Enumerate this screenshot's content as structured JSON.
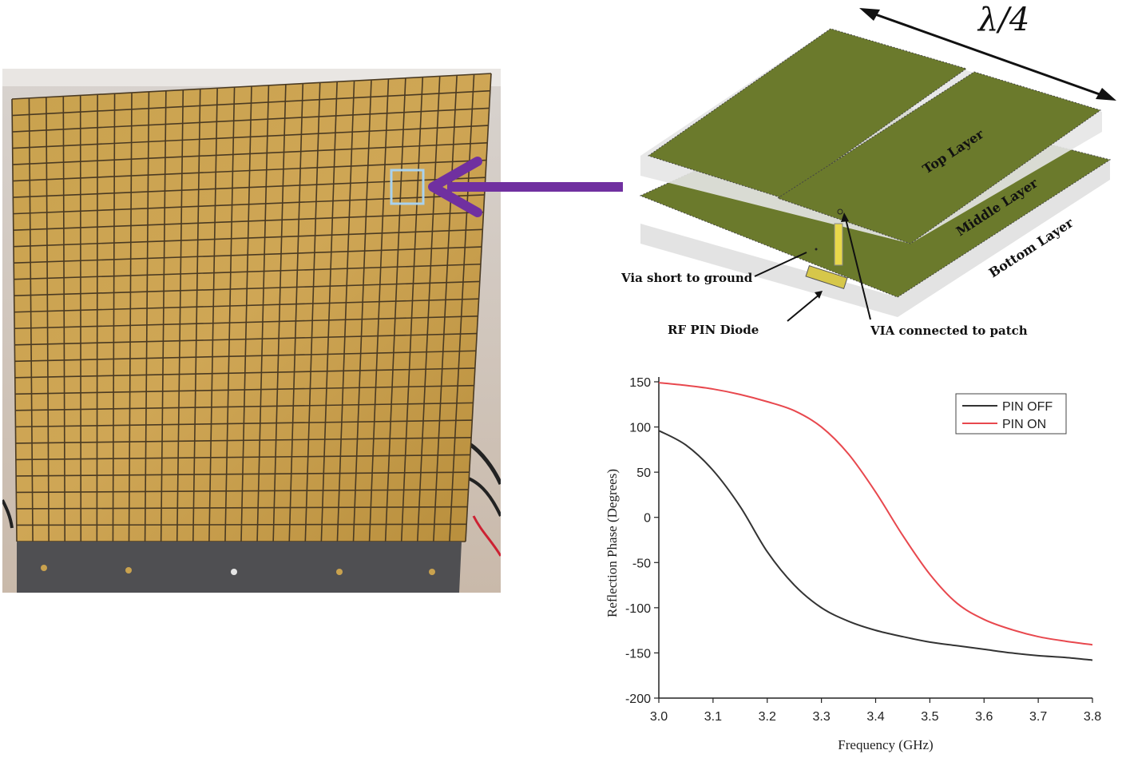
{
  "photo": {
    "description_icon": "metasurface-board-photo",
    "highlight_color": "#a9d2ee",
    "arrow_color": "#7030a0"
  },
  "diagram": {
    "dimension_label": "λ/4",
    "layers": [
      "Top Layer",
      "Middle Layer",
      "Bottom Layer"
    ],
    "callouts": {
      "via_short": "Via short to ground",
      "pin_diode": "RF PIN Diode",
      "via_patch": "VIA connected to patch"
    },
    "colors": {
      "patch": "#6b7a2c",
      "patch_light": "#7f8f35",
      "ground": "#6b7a2c",
      "substrate": "#e6e6e6"
    }
  },
  "chart_data": {
    "type": "line",
    "xlabel": "Frequency (GHz)",
    "ylabel": "Reflection Phase (Degrees)",
    "xlim": [
      3.0,
      3.8
    ],
    "ylim": [
      -200,
      150
    ],
    "xticks": [
      "3.0",
      "3.1",
      "3.2",
      "3.3",
      "3.4",
      "3.5",
      "3.6",
      "3.7",
      "3.8"
    ],
    "yticks": [
      "-200",
      "-150",
      "-100",
      "-50",
      "0",
      "50",
      "100",
      "150"
    ],
    "legend_position": "top-right",
    "grid": false,
    "series": [
      {
        "name": "PIN OFF",
        "color": "#333333",
        "x": [
          3.0,
          3.05,
          3.1,
          3.15,
          3.2,
          3.25,
          3.3,
          3.35,
          3.4,
          3.45,
          3.5,
          3.55,
          3.6,
          3.65,
          3.7,
          3.75,
          3.8
        ],
        "y": [
          96,
          80,
          52,
          12,
          -38,
          -75,
          -100,
          -115,
          -125,
          -132,
          -138,
          -142,
          -146,
          -150,
          -153,
          -155,
          -158
        ]
      },
      {
        "name": "PIN ON",
        "color": "#e8484e",
        "x": [
          3.0,
          3.05,
          3.1,
          3.15,
          3.2,
          3.25,
          3.3,
          3.35,
          3.4,
          3.45,
          3.5,
          3.55,
          3.6,
          3.65,
          3.7,
          3.75,
          3.8
        ],
        "y": [
          149,
          146,
          142,
          136,
          128,
          118,
          100,
          70,
          28,
          -20,
          -63,
          -95,
          -113,
          -124,
          -132,
          -137,
          -141
        ]
      }
    ]
  }
}
